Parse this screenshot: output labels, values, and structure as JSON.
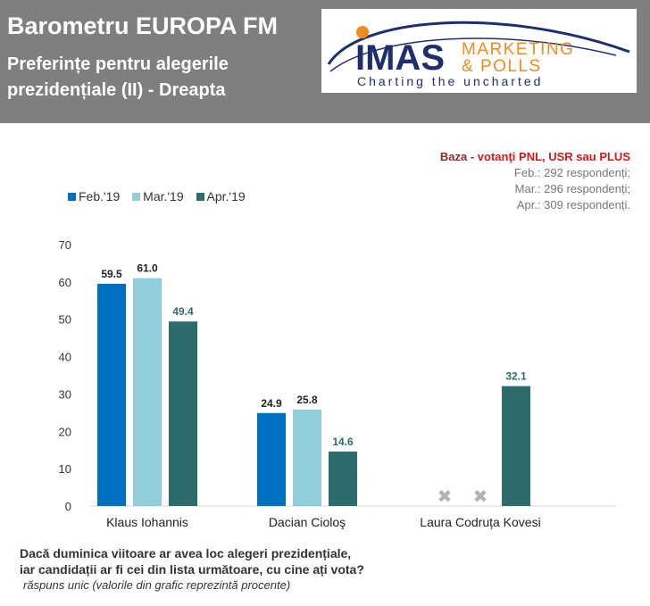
{
  "header": {
    "title": "Barometru EUROPA FM",
    "subtitle_line1": "Preferințe pentru alegerile",
    "subtitle_line2": "prezidențiale (II) - Dreapta"
  },
  "logo": {
    "brand": "IMAS",
    "word1": "MARKETING",
    "word2": "& POLLS",
    "tagline": "Charting the uncharted"
  },
  "base": {
    "label": "Baza -",
    "value": "votanţi PNL, USR sau PLUS",
    "lines": [
      "Feb.: 292 respondenți;",
      "Mar.: 296 respondenți;",
      "Apr.: 309 respondenți."
    ]
  },
  "question": {
    "line1": "Dacă duminica viitoare ar avea loc alegeri prezidențiale,",
    "line2": "iar candidații ar fi cei din lista următoare, cu cine ați vota?",
    "note": "răspuns unic (valorile din grafic reprezintă procente)"
  },
  "colors": {
    "feb": "#0070c0",
    "mar": "#92cddc",
    "apr": "#2e6b6b",
    "header_bg": "#7f7f7f",
    "logo_orange": "#f08c1e",
    "logo_navy": "#1f2f6e"
  },
  "chart_data": {
    "type": "bar",
    "categories": [
      "Klaus Iohannis",
      "Dacian Cioloş",
      "Laura Codruța Kovesi"
    ],
    "series": [
      {
        "name": "Feb.'19",
        "color": "#0070c0",
        "values": [
          59.5,
          24.9,
          null
        ]
      },
      {
        "name": "Mar.'19",
        "color": "#92cddc",
        "values": [
          61.0,
          25.8,
          null
        ]
      },
      {
        "name": "Apr.'19",
        "color": "#2e6b6b",
        "values": [
          49.4,
          14.6,
          32.1
        ]
      }
    ],
    "ylim": [
      0,
      70
    ],
    "yticks": [
      "0",
      "10",
      "20",
      "30",
      "40",
      "50",
      "60",
      "70"
    ],
    "grid": false,
    "legend": "top-left",
    "missing_marker": "✖"
  }
}
